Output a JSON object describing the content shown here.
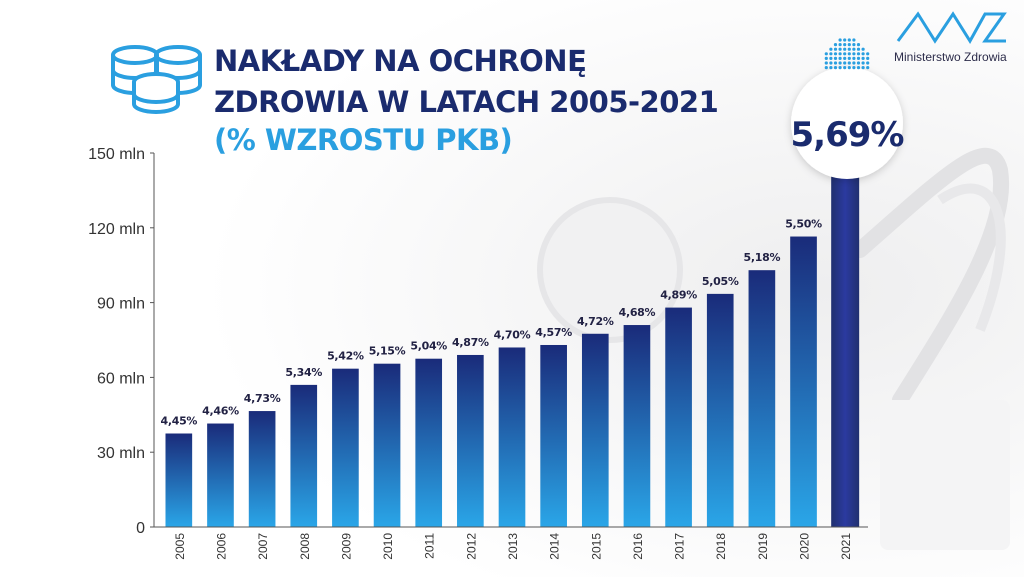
{
  "header": {
    "title_line1": "NAKŁADY NA OCHRONĘ",
    "title_line2": "ZDROWIA W LATACH 2005-2021",
    "title_line3": "(% WZROSTU PKB)"
  },
  "logo": {
    "text": "Ministerstwo Zdrowia",
    "icon": "ministry-logo-icon",
    "color": "#2a9fe0"
  },
  "colors": {
    "title_dark": "#1a2b6e",
    "title_accent": "#2a9fe0",
    "bar_top": "#1a2b7a",
    "bar_bottom": "#2aa6e8",
    "label_dark": "#222244"
  },
  "chart_data": {
    "type": "bar",
    "categories": [
      "2005",
      "2006",
      "2007",
      "2008",
      "2009",
      "2010",
      "2011",
      "2012",
      "2013",
      "2014",
      "2015",
      "2016",
      "2017",
      "2018",
      "2019",
      "2020",
      "2021"
    ],
    "values": [
      37.5,
      41.5,
      46.5,
      57,
      63.5,
      65.5,
      67.5,
      69,
      72,
      73,
      77.5,
      81,
      88,
      93.5,
      103,
      116.5,
      142
    ],
    "data_labels": [
      "4,45%",
      "4,46%",
      "4,73%",
      "5,34%",
      "5,42%",
      "5,15%",
      "5,04%",
      "4,87%",
      "4,70%",
      "4,57%",
      "4,72%",
      "4,68%",
      "4,89%",
      "5,05%",
      "5,18%",
      "5,50%",
      "5,69%"
    ],
    "y_ticks": [
      0,
      30,
      60,
      90,
      120,
      150
    ],
    "y_tick_labels": [
      "0",
      "30 mln",
      "60 mln",
      "90 mln",
      "120 mln",
      "150 mln"
    ],
    "ylim": [
      0,
      150
    ],
    "highlight_index": 16,
    "grid": false
  }
}
